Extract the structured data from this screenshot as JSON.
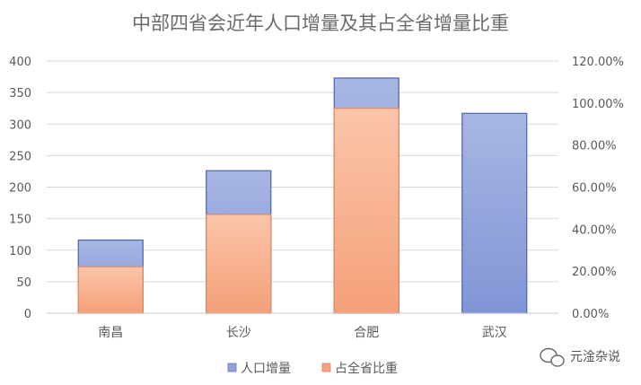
{
  "chart_data": {
    "type": "bar",
    "stacked": true,
    "title": "中部四省会近年人口增量及其占全省增量比重",
    "categories": [
      "南昌",
      "长沙",
      "合肥",
      "武汉"
    ],
    "series": [
      {
        "name": "人口增量",
        "values": [
          116,
          226,
          373,
          317
        ],
        "color": "#9eaedf",
        "axis": "left"
      },
      {
        "name": "占全省比重",
        "values": [
          0.221,
          0.47,
          0.975,
          null
        ],
        "color": "#f6a684",
        "axis": "right"
      }
    ],
    "y_left": {
      "range": [
        0,
        400
      ],
      "ticks": [
        "0",
        "50",
        "100",
        "150",
        "200",
        "250",
        "300",
        "350",
        "400"
      ]
    },
    "y_right": {
      "range": [
        0,
        1.2
      ],
      "ticks": [
        "0.00%",
        "20.00%",
        "40.00%",
        "60.00%",
        "80.00%",
        "100.00%",
        "120.00%"
      ]
    },
    "grid": true,
    "legend_position": "bottom"
  },
  "legend": [
    {
      "label": "人口增量",
      "color": "#8fa2d9"
    },
    {
      "label": "占全省比重",
      "color": "#f4a27f"
    }
  ],
  "watermark": {
    "text": "元淦杂说",
    "icon": "wechat-icon"
  }
}
